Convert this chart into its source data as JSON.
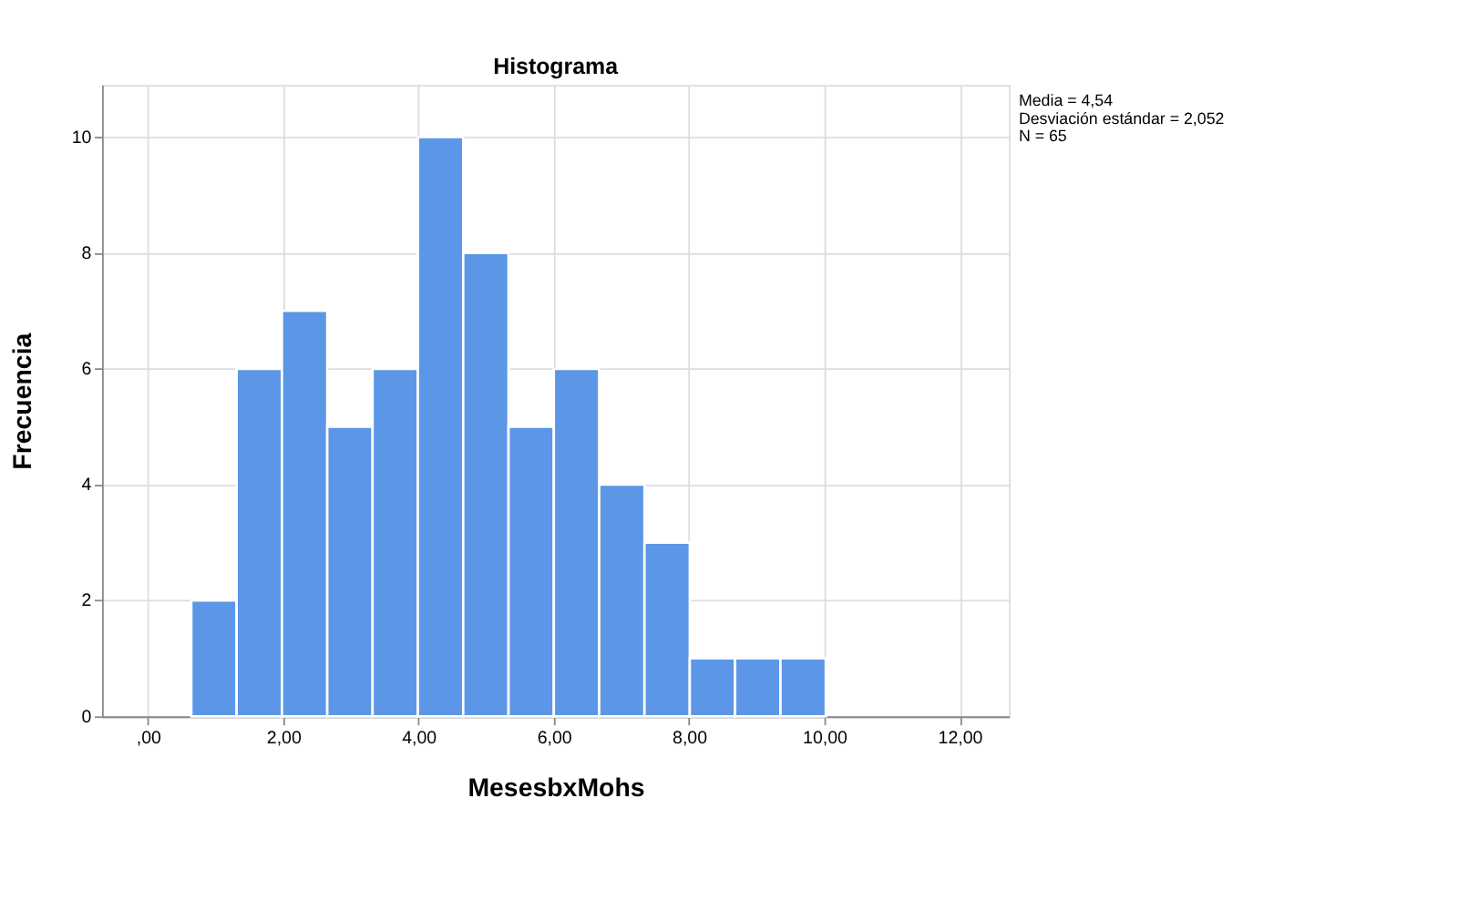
{
  "chart_data": {
    "type": "histogram",
    "title": "Histograma",
    "xlabel": "MesesbxMohs",
    "ylabel": "Frecuencia",
    "bins": [
      0.64,
      1.31,
      1.98,
      2.65,
      3.32,
      3.99,
      4.66,
      5.33,
      6.0,
      6.67,
      7.34,
      8.01,
      8.68,
      9.35,
      10.02
    ],
    "values": [
      2,
      6,
      7,
      5,
      6,
      10,
      8,
      5,
      6,
      4,
      3,
      1,
      1,
      1
    ],
    "color": "#5b97e6",
    "xlim": [
      -0.68,
      12.73
    ],
    "xticks": [
      {
        "value": 0,
        "label": ",00"
      },
      {
        "value": 2,
        "label": "2,00"
      },
      {
        "value": 4,
        "label": "4,00"
      },
      {
        "value": 6,
        "label": "6,00"
      },
      {
        "value": 8,
        "label": "8,00"
      },
      {
        "value": 10,
        "label": "10,00"
      },
      {
        "value": 12,
        "label": "12,00"
      }
    ],
    "ylim": [
      0,
      10.9
    ],
    "yticks": [
      0,
      2,
      4,
      6,
      8,
      10
    ],
    "grid": true,
    "annotations": [
      "Media = 4,54",
      "Desviación estándar = 2,052",
      "N = 65"
    ]
  }
}
